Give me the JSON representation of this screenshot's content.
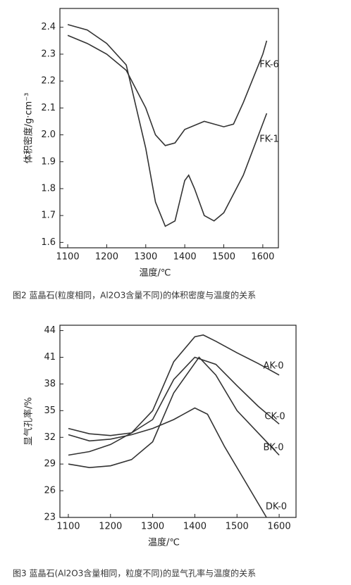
{
  "chart_data": [
    {
      "type": "line",
      "caption": "图2 蓝晶石(粒度相同，Al2O3含量不同)的体积密度与温度的关系",
      "ylabel": "体积密度/g·cm⁻³",
      "xlabel": "温度/℃",
      "xlim": [
        1080,
        1640
      ],
      "xticks": [
        1100,
        1200,
        1300,
        1400,
        1500,
        1600
      ],
      "ylim": [
        1.58,
        2.47
      ],
      "yticks": [
        1.6,
        1.7,
        1.8,
        1.9,
        {
          "value": 2,
          "label": "2.0"
        },
        2.1,
        2.2,
        2.3,
        2.4
      ],
      "series": [
        {
          "name": "FK-6",
          "color": "#333333",
          "x": [
            1100,
            1150,
            1200,
            1250,
            1300,
            1325,
            1350,
            1375,
            1400,
            1450,
            1500,
            1525,
            1550,
            1600,
            1610
          ],
          "values": [
            2.37,
            2.34,
            2.3,
            2.24,
            2.1,
            2.0,
            1.96,
            1.97,
            2.02,
            2.05,
            2.03,
            2.04,
            2.12,
            2.3,
            2.35
          ]
        },
        {
          "name": "FK-1",
          "color": "#333333",
          "x": [
            1100,
            1150,
            1200,
            1250,
            1300,
            1325,
            1350,
            1375,
            1400,
            1410,
            1425,
            1450,
            1475,
            1500,
            1550,
            1610
          ],
          "values": [
            2.41,
            2.39,
            2.34,
            2.26,
            1.95,
            1.75,
            1.66,
            1.68,
            1.83,
            1.85,
            1.8,
            1.7,
            1.68,
            1.71,
            1.85,
            2.08
          ]
        }
      ]
    },
    {
      "type": "line",
      "caption": "图3 蓝晶石(Al2O3含量相同，粒度不同)的显气孔率与温度的关系",
      "ylabel": "显气孔率/%",
      "xlabel": "温度/℃",
      "xlim": [
        1080,
        1640
      ],
      "xticks": [
        1100,
        1200,
        1300,
        1400,
        1500,
        1600
      ],
      "ylim": [
        23,
        44.6
      ],
      "yticks": [
        23,
        26,
        29,
        32,
        35,
        38,
        41,
        44
      ],
      "series": [
        {
          "name": "AK-0",
          "color": "#333333",
          "x": [
            1100,
            1150,
            1200,
            1250,
            1300,
            1350,
            1400,
            1420,
            1450,
            1500,
            1550,
            1600
          ],
          "values": [
            30,
            30.4,
            31.2,
            32.5,
            35,
            40.5,
            43.3,
            43.5,
            42.8,
            41.5,
            40.3,
            39
          ]
        },
        {
          "name": "CK-0",
          "color": "#333333",
          "x": [
            1100,
            1150,
            1200,
            1250,
            1300,
            1350,
            1400,
            1450,
            1500,
            1550,
            1600
          ],
          "values": [
            33,
            32.4,
            32.2,
            32.5,
            34,
            38.5,
            41,
            40.2,
            37.8,
            35.5,
            33.5
          ]
        },
        {
          "name": "BK-0",
          "color": "#333333",
          "x": [
            1100,
            1150,
            1200,
            1250,
            1300,
            1350,
            1410,
            1450,
            1500,
            1550,
            1600
          ],
          "values": [
            29,
            28.6,
            28.8,
            29.5,
            31.5,
            37,
            41,
            39,
            35,
            32.5,
            30
          ]
        },
        {
          "name": "DK-0",
          "color": "#333333",
          "x": [
            1100,
            1150,
            1200,
            1250,
            1300,
            1350,
            1400,
            1430,
            1470,
            1520,
            1570
          ],
          "values": [
            32.3,
            31.6,
            31.8,
            32.3,
            33,
            34,
            35.3,
            34.6,
            31,
            27,
            23
          ]
        }
      ]
    }
  ]
}
